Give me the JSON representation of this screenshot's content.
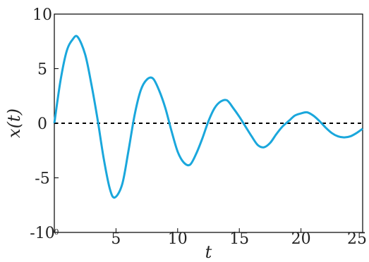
{
  "chart_data": {
    "type": "line",
    "title": "",
    "xlabel": "t",
    "ylabel": "x(t)",
    "xlim": [
      0,
      25
    ],
    "ylim": [
      -10,
      10
    ],
    "x_ticks": [
      "0",
      "5",
      "10",
      "15",
      "20",
      "25"
    ],
    "y_ticks": [
      "10",
      "5",
      "0",
      "-5",
      "-10"
    ],
    "grid": false,
    "reference_line": {
      "y": 0,
      "style": "dashed",
      "color": "#000000"
    },
    "series": [
      {
        "color": "#1aa7dc",
        "x": [
          0,
          0.5,
          1.0,
          1.5,
          1.9,
          2.5,
          3.0,
          3.5,
          4.0,
          4.5,
          4.9,
          5.5,
          6.0,
          6.5,
          7.0,
          7.5,
          8.0,
          8.5,
          9.0,
          9.5,
          10.0,
          10.5,
          11.0,
          11.5,
          12.0,
          12.5,
          13.0,
          13.5,
          14.0,
          14.5,
          15.0,
          15.5,
          16.0,
          16.5,
          17.0,
          17.5,
          18.0,
          18.5,
          19.0,
          19.5,
          20.0,
          20.5,
          21.0,
          21.5,
          22.0,
          22.5,
          23.0,
          23.5,
          24.0,
          24.5,
          25.0
        ],
        "y": [
          0,
          3.9,
          6.6,
          7.7,
          7.9,
          6.3,
          3.6,
          0.4,
          -3.2,
          -6.0,
          -6.8,
          -5.6,
          -2.6,
          0.7,
          3.0,
          4.0,
          4.1,
          3.0,
          1.4,
          -0.7,
          -2.6,
          -3.6,
          -3.8,
          -2.8,
          -1.4,
          0.2,
          1.4,
          2.0,
          2.1,
          1.4,
          0.6,
          -0.3,
          -1.2,
          -2.0,
          -2.2,
          -1.8,
          -1.0,
          -0.3,
          0.2,
          0.7,
          0.9,
          1.0,
          0.7,
          0.2,
          -0.4,
          -0.9,
          -1.2,
          -1.3,
          -1.2,
          -0.9,
          -0.5
        ]
      }
    ]
  }
}
